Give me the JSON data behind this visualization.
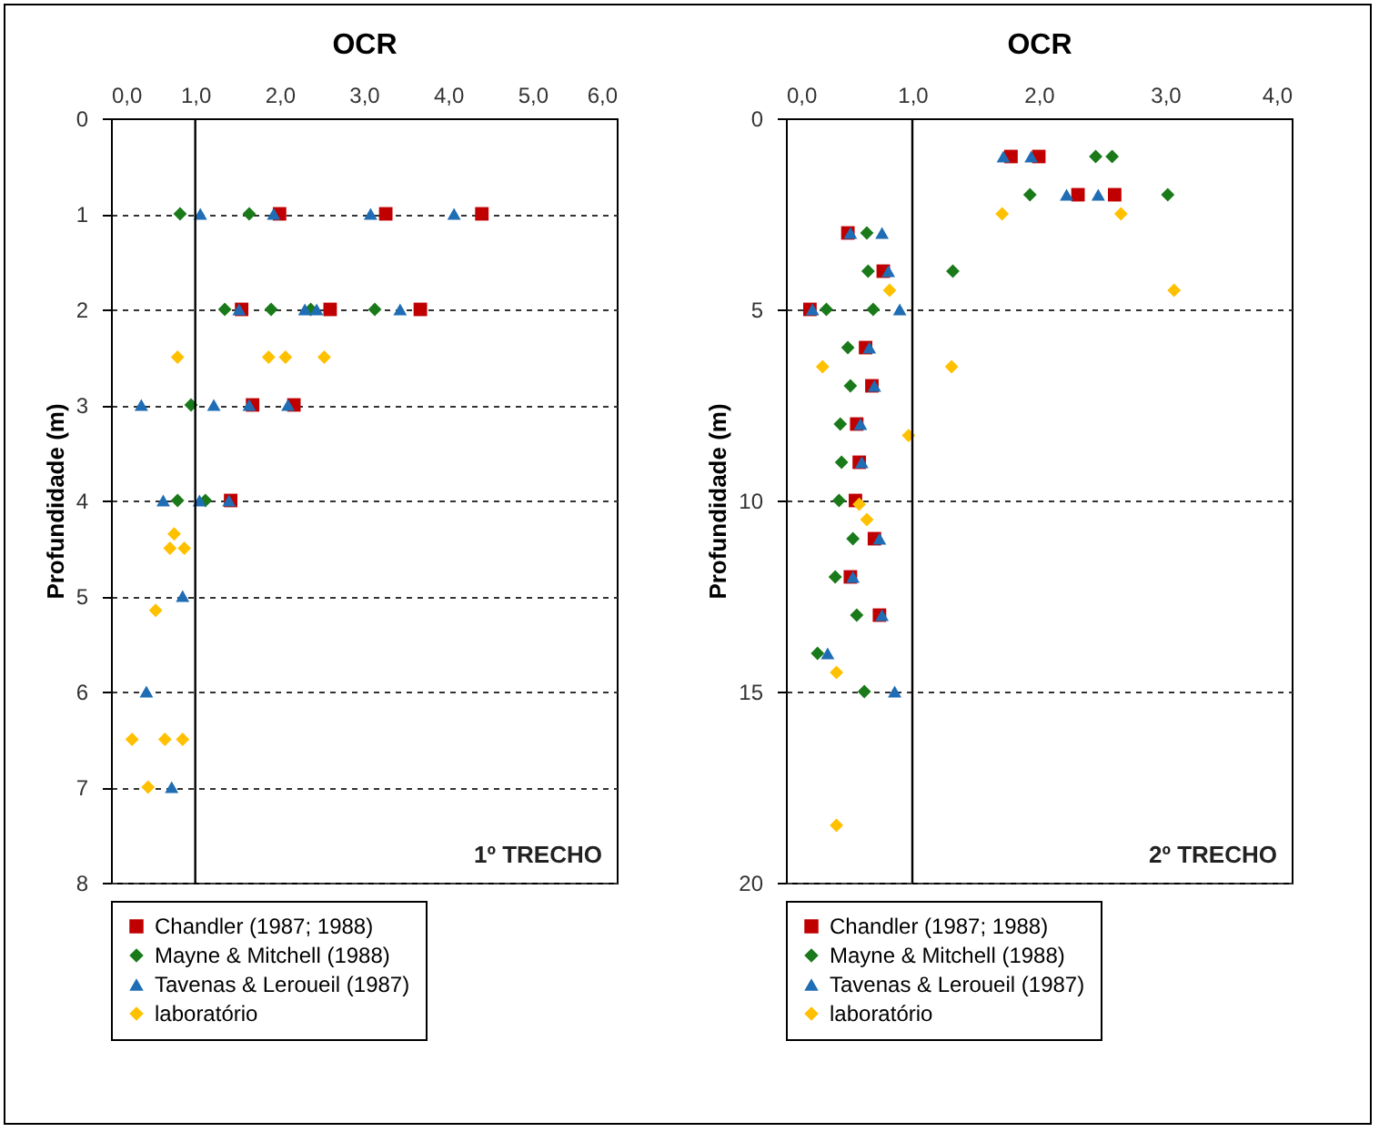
{
  "chart_data": [
    {
      "type": "scatter",
      "xlabel": "OCR",
      "ylabel": "Profundidade (m)",
      "annotations": [
        "1º TRECHO"
      ],
      "xlim": [
        0,
        6
      ],
      "xticks": [
        {
          "value": 0,
          "label": "0,0"
        },
        {
          "value": 1,
          "label": "1,0"
        },
        {
          "value": 2,
          "label": "2,0"
        },
        {
          "value": 3,
          "label": "3,0"
        },
        {
          "value": 4,
          "label": "4,0"
        },
        {
          "value": 5,
          "label": "5,0"
        },
        {
          "value": 6,
          "label": "6,0"
        }
      ],
      "ylim": [
        8,
        0
      ],
      "yticks": [
        0,
        1,
        2,
        3,
        4,
        5,
        6,
        7,
        8
      ],
      "grid": "y",
      "legend": "bottom",
      "ref_lines": [
        {
          "axis": "x",
          "value": 1,
          "color": "#000000",
          "line_style": "solid"
        }
      ],
      "series": [
        {
          "name": "Chandler (1987; 1988)",
          "color": "#c00000",
          "marker": "square",
          "x": [
            2.0,
            3.26,
            4.4,
            1.55,
            2.6,
            3.67,
            1.68,
            2.17,
            1.42
          ],
          "values": [
            1,
            1,
            1,
            2,
            2,
            2,
            3,
            3,
            4
          ]
        },
        {
          "name": "Mayne & Mitchell (1988)",
          "color": "#1a7a1a",
          "marker": "diamond",
          "x": [
            0.82,
            1.64,
            null,
            1.35,
            1.9,
            2.37,
            3.13,
            0.95,
            0.79,
            1.12
          ],
          "values": [
            1,
            1,
            null,
            2,
            2,
            2,
            2,
            3,
            4,
            4
          ]
        },
        {
          "name": "Tavenas & Leroueil (1987)",
          "color": "#1f6db4",
          "marker": "triangle",
          "x": [
            1.06,
            1.93,
            3.08,
            4.07,
            1.52,
            2.3,
            2.44,
            3.43,
            0.36,
            1.22,
            1.64,
            2.1,
            0.62,
            null,
            1.05,
            1.4,
            0.85,
            0.42,
            0.72
          ],
          "values": [
            1,
            1,
            1,
            1,
            2,
            2,
            2,
            2,
            3,
            3,
            3,
            3,
            4,
            null,
            4,
            4,
            5,
            6,
            7
          ]
        },
        {
          "name": "laboratório",
          "color": "#ffc000",
          "marker": "diamond",
          "x": [
            0.79,
            1.87,
            2.07,
            2.53,
            0.75,
            0.7,
            0.87,
            0.53,
            0.25,
            0.64,
            0.85,
            0.44
          ],
          "values": [
            2.5,
            2.5,
            2.5,
            2.5,
            4.35,
            4.5,
            4.5,
            5.15,
            6.5,
            6.5,
            6.5,
            7
          ]
        }
      ]
    },
    {
      "type": "scatter",
      "xlabel": "OCR",
      "ylabel": "Profundidade (m)",
      "annotations": [
        "2º TRECHO"
      ],
      "xlim": [
        0,
        4
      ],
      "xticks": [
        {
          "value": 0,
          "label": "0,0"
        },
        {
          "value": 1,
          "label": "1,0"
        },
        {
          "value": 2,
          "label": "2,0"
        },
        {
          "value": 3,
          "label": "3,0"
        },
        {
          "value": 4,
          "label": "4,0"
        }
      ],
      "ylim": [
        20,
        0
      ],
      "yticks": [
        0,
        5,
        10,
        15,
        20
      ],
      "grid": "y",
      "legend": "bottom",
      "ref_lines": [
        {
          "axis": "x",
          "value": 1,
          "color": "#000000",
          "line_style": "solid"
        }
      ],
      "series": [
        {
          "name": "Chandler (1987; 1988)",
          "color": "#c00000",
          "marker": "square",
          "x": [
            1.78,
            2.0,
            2.31,
            2.6,
            0.49,
            0.77,
            0.19,
            0.63,
            0.68,
            0.56,
            0.58,
            0.55,
            0.7,
            0.51,
            0.74,
            null
          ],
          "values": [
            1,
            1,
            2,
            2,
            3,
            4,
            5,
            6,
            7,
            8,
            9,
            10,
            11,
            12,
            13,
            null
          ]
        },
        {
          "name": "Mayne & Mitchell (1988)",
          "color": "#1a7a1a",
          "marker": "diamond",
          "x": [
            2.45,
            2.58,
            1.93,
            3.02,
            0.64,
            0.65,
            1.32,
            0.32,
            0.69,
            0.49,
            0.51,
            0.43,
            0.44,
            0.42,
            0.53,
            0.39,
            0.56,
            0.25,
            0.62
          ],
          "values": [
            1,
            1,
            2,
            2,
            3,
            4,
            4,
            5,
            5,
            6,
            7,
            8,
            9,
            10,
            11,
            12,
            13,
            14,
            15
          ]
        },
        {
          "name": "Tavenas & Leroueil (1987)",
          "color": "#1f6db4",
          "marker": "triangle",
          "x": [
            1.72,
            1.94,
            2.22,
            2.47,
            0.51,
            0.76,
            0.81,
            0.21,
            0.9,
            0.66,
            0.7,
            0.59,
            0.6,
            null,
            0.74,
            0.53,
            0.76,
            0.33,
            0.86
          ],
          "values": [
            1,
            1,
            2,
            2,
            3,
            3,
            4,
            5,
            5,
            6,
            7,
            8,
            9,
            null,
            11,
            12,
            13,
            14,
            15
          ]
        },
        {
          "name": "laboratório",
          "color": "#ffc000",
          "marker": "diamond",
          "x": [
            1.71,
            2.65,
            0.82,
            3.07,
            0.29,
            1.31,
            0.97,
            0.58,
            0.64,
            0.4,
            0.4
          ],
          "values": [
            2.5,
            2.5,
            4.5,
            4.5,
            6.5,
            6.5,
            8.3,
            10.1,
            10.5,
            14.5,
            18.5
          ]
        }
      ]
    }
  ]
}
